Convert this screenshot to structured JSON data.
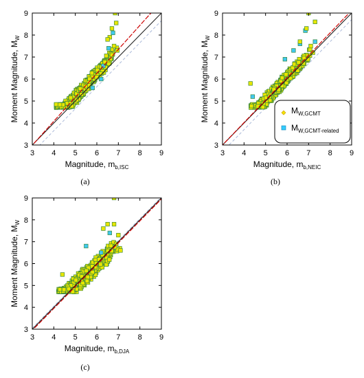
{
  "panels": [
    {
      "id": "a",
      "caption": "(a)",
      "xlabel_main": "Magnitude, m",
      "xlabel_sub": "b,ISC",
      "ylabel_main": "Moment Magnitude, M",
      "ylabel_sub": "W",
      "show_legend": false
    },
    {
      "id": "b",
      "caption": "(b)",
      "xlabel_main": "Magnitude, m",
      "xlabel_sub": "b,NEIC",
      "ylabel_main": "Moment Magnitude, M",
      "ylabel_sub": "W",
      "show_legend": true
    },
    {
      "id": "c",
      "caption": "(c)",
      "xlabel_main": "Magnitude, m",
      "xlabel_sub": "b,DJA",
      "ylabel_main": "Moment Magnitude, M",
      "ylabel_sub": "W",
      "show_legend": false
    }
  ],
  "legend": {
    "items": [
      {
        "main": "M",
        "sub": "W,GCMT",
        "color": "#f2e600",
        "stroke": "#d4a000"
      },
      {
        "main": "M",
        "sub": "W,GCMT-related",
        "color": "#33ccff",
        "stroke": "#1f8fbf"
      }
    ]
  },
  "colors": {
    "gcmt_fill": "#e8e600",
    "gcmt_stroke": "#3c8a3c",
    "related_fill": "#40c8f0",
    "fit_line": "#cc0000",
    "one_to_one": "#222222",
    "dashed": "#a9b8d8"
  },
  "chart_data": [
    {
      "type": "scatter",
      "panel": "a",
      "xlim": [
        3,
        9
      ],
      "ylim": [
        3,
        9
      ],
      "xticks": [
        3,
        4,
        5,
        6,
        7,
        8,
        9
      ],
      "yticks": [
        3,
        4,
        5,
        6,
        7,
        8,
        9
      ],
      "grid": false,
      "fit_line": {
        "slope": 1.09,
        "intercept": -0.28
      },
      "one_to_one_line": {
        "slope": 1.0,
        "intercept": 0.0
      },
      "dashed_line": {
        "slope": 1.0,
        "intercept": -0.35
      },
      "cloud": {
        "x_range": [
          4.1,
          7.0
        ],
        "y_min": 4.7,
        "center_slope": 1.09,
        "center_intercept": -0.28,
        "spread": 0.35
      },
      "outliers_gcmt": [
        [
          6.85,
          9.0
        ],
        [
          6.9,
          8.55
        ],
        [
          6.7,
          8.3
        ],
        [
          6.6,
          7.9
        ],
        [
          6.8,
          7.5
        ],
        [
          6.5,
          7.8
        ],
        [
          6.7,
          7.1
        ],
        [
          6.95,
          7.3
        ]
      ],
      "outliers_related": [
        [
          6.75,
          8.1
        ],
        [
          6.55,
          7.4
        ],
        [
          6.2,
          6.0
        ],
        [
          5.8,
          5.6
        ],
        [
          6.3,
          6.6
        ]
      ]
    },
    {
      "type": "scatter",
      "panel": "b",
      "xlim": [
        3,
        9
      ],
      "ylim": [
        3,
        9
      ],
      "xticks": [
        3,
        4,
        5,
        6,
        7,
        8,
        9
      ],
      "yticks": [
        3,
        4,
        5,
        6,
        7,
        8,
        9
      ],
      "grid": false,
      "fit_line": {
        "slope": 1.02,
        "intercept": -0.06
      },
      "one_to_one_line": {
        "slope": 1.0,
        "intercept": 0.0
      },
      "dashed_line": {
        "slope": 1.0,
        "intercept": -0.3
      },
      "cloud": {
        "x_range": [
          4.3,
          7.2
        ],
        "y_min": 4.7,
        "center_slope": 1.02,
        "center_intercept": -0.06,
        "spread": 0.32
      },
      "outliers_gcmt": [
        [
          7.0,
          9.0
        ],
        [
          7.3,
          8.6
        ],
        [
          6.9,
          8.3
        ],
        [
          6.6,
          7.7
        ],
        [
          7.1,
          7.5
        ],
        [
          7.2,
          7.2
        ],
        [
          4.3,
          5.8
        ]
      ],
      "outliers_related": [
        [
          6.85,
          8.2
        ],
        [
          6.6,
          7.6
        ],
        [
          6.3,
          7.3
        ],
        [
          7.3,
          7.7
        ],
        [
          4.4,
          5.2
        ],
        [
          5.9,
          6.9
        ]
      ]
    },
    {
      "type": "scatter",
      "panel": "c",
      "xlim": [
        3,
        9
      ],
      "ylim": [
        3,
        9
      ],
      "xticks": [
        3,
        4,
        5,
        6,
        7,
        8,
        9
      ],
      "yticks": [
        3,
        4,
        5,
        6,
        7,
        8,
        9
      ],
      "grid": false,
      "fit_line": {
        "slope": 1.0,
        "intercept": -0.05
      },
      "one_to_one_line": {
        "slope": 1.0,
        "intercept": 0.0
      },
      "dashed_line": {
        "slope": 1.0,
        "intercept": 0.05
      },
      "cloud": {
        "x_range": [
          4.2,
          7.1
        ],
        "y_min": 4.7,
        "center_slope": 0.95,
        "center_intercept": 0.25,
        "spread": 0.45
      },
      "outliers_gcmt": [
        [
          6.8,
          9.0
        ],
        [
          6.5,
          7.8
        ],
        [
          6.8,
          7.8
        ],
        [
          6.3,
          7.6
        ],
        [
          7.0,
          7.3
        ],
        [
          6.9,
          6.9
        ],
        [
          4.4,
          5.5
        ],
        [
          7.1,
          6.6
        ]
      ],
      "outliers_related": [
        [
          6.6,
          7.4
        ],
        [
          5.5,
          6.8
        ],
        [
          6.2,
          6.5
        ]
      ]
    }
  ]
}
